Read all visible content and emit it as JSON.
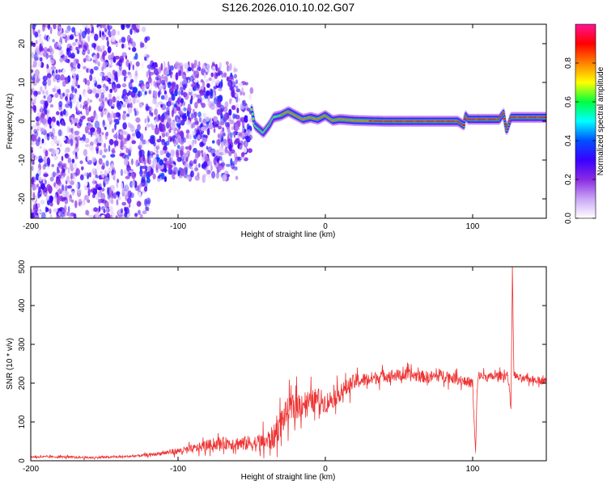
{
  "figure": {
    "title": "S126.2026.010.10.02.G07"
  },
  "chart_data": [
    {
      "id": "spectrogram",
      "type": "heatmap",
      "title": "",
      "xlabel": "Height of straight line (km)",
      "ylabel": "Frequency (Hz)",
      "xlim": [
        -200,
        150
      ],
      "ylim": [
        -25,
        25
      ],
      "xticks": [
        -200,
        -100,
        0,
        100
      ],
      "xtick_labels": [
        "-200",
        "-100",
        "0",
        "100"
      ],
      "yticks": [
        -20,
        -10,
        0,
        10,
        20
      ],
      "ytick_labels": [
        "-20",
        "-10",
        "0",
        "10",
        "20"
      ],
      "colorbar": {
        "label": "Normalized spectral amplitude",
        "range": [
          0.0,
          1.0
        ],
        "ticks": [
          0.0,
          0.2,
          0.4,
          0.6,
          0.8
        ],
        "tick_labels": [
          "0.0",
          "0.2",
          "0.4",
          "0.6",
          "0.8"
        ],
        "colors": [
          "#ffffff",
          "#c9a6f5",
          "#8a2be2",
          "#3a00ff",
          "#0050ff",
          "#00ffff",
          "#00ff40",
          "#ffff00",
          "#ff8000",
          "#ff0000",
          "#ff1493"
        ]
      },
      "noise_region": {
        "x_from": -200,
        "x_to": -50,
        "amplitude": [
          0.0,
          0.35
        ]
      },
      "ridge": [
        {
          "x": -50,
          "y": 3.0
        },
        {
          "x": -48,
          "y": -1.0
        },
        {
          "x": -45,
          "y": -2.0
        },
        {
          "x": -42,
          "y": -3.0
        },
        {
          "x": -38,
          "y": -1.0
        },
        {
          "x": -35,
          "y": 1.0
        },
        {
          "x": -30,
          "y": 1.5
        },
        {
          "x": -25,
          "y": 2.5
        },
        {
          "x": -20,
          "y": 1.5
        },
        {
          "x": -15,
          "y": 0.5
        },
        {
          "x": -10,
          "y": 1.0
        },
        {
          "x": -5,
          "y": 0.5
        },
        {
          "x": 0,
          "y": 1.5
        },
        {
          "x": 5,
          "y": 0.2
        },
        {
          "x": 10,
          "y": 0.5
        },
        {
          "x": 20,
          "y": 0.2
        },
        {
          "x": 40,
          "y": 0.0
        },
        {
          "x": 60,
          "y": 0.0
        },
        {
          "x": 80,
          "y": 0.0
        },
        {
          "x": 90,
          "y": 0.0
        },
        {
          "x": 94,
          "y": -1.0
        },
        {
          "x": 95,
          "y": 1.5
        },
        {
          "x": 97,
          "y": 0.5
        },
        {
          "x": 110,
          "y": 0.5
        },
        {
          "x": 118,
          "y": 0.5
        },
        {
          "x": 121,
          "y": 2.0
        },
        {
          "x": 123,
          "y": -2.5
        },
        {
          "x": 126,
          "y": 1.0
        },
        {
          "x": 135,
          "y": 1.0
        },
        {
          "x": 150,
          "y": 1.0
        }
      ]
    },
    {
      "id": "snr",
      "type": "line",
      "title": "",
      "xlabel": "Height of straight line (km)",
      "ylabel": "SNR (10 * v/v)",
      "xlim": [
        -200,
        150
      ],
      "ylim": [
        0,
        500
      ],
      "xticks": [
        -200,
        -100,
        0,
        100
      ],
      "xtick_labels": [
        "-200",
        "-100",
        "0",
        "100"
      ],
      "yticks": [
        0,
        100,
        200,
        300,
        400,
        500
      ],
      "ytick_labels": [
        "0",
        "100",
        "200",
        "300",
        "400",
        "500"
      ],
      "color": "#ee3333",
      "series": [
        {
          "name": "SNR",
          "x": [
            -200,
            -180,
            -160,
            -140,
            -130,
            -120,
            -110,
            -100,
            -90,
            -80,
            -70,
            -60,
            -50,
            -45,
            -40,
            -35,
            -30,
            -25,
            -20,
            -15,
            -10,
            -5,
            0,
            5,
            10,
            20,
            30,
            40,
            50,
            60,
            70,
            80,
            90,
            95,
            100,
            101,
            102,
            103,
            104,
            110,
            120,
            124,
            126,
            127,
            128,
            130,
            135,
            140,
            150
          ],
          "values": [
            10,
            10,
            8,
            10,
            12,
            15,
            20,
            25,
            30,
            40,
            45,
            45,
            45,
            45,
            50,
            60,
            100,
            130,
            140,
            150,
            150,
            160,
            150,
            160,
            175,
            205,
            210,
            220,
            220,
            220,
            215,
            220,
            210,
            205,
            200,
            100,
            20,
            180,
            220,
            215,
            220,
            220,
            135,
            495,
            225,
            215,
            210,
            210,
            205
          ],
          "noise": [
            6,
            6,
            6,
            6,
            6,
            8,
            12,
            18,
            25,
            30,
            35,
            40,
            45,
            50,
            60,
            70,
            80,
            80,
            80,
            75,
            70,
            65,
            60,
            55,
            50,
            45,
            40,
            35,
            35,
            35,
            35,
            35,
            30,
            30,
            30,
            20,
            10,
            20,
            25,
            25,
            25,
            25,
            20,
            10,
            20,
            25,
            20,
            20,
            20
          ]
        }
      ]
    }
  ]
}
